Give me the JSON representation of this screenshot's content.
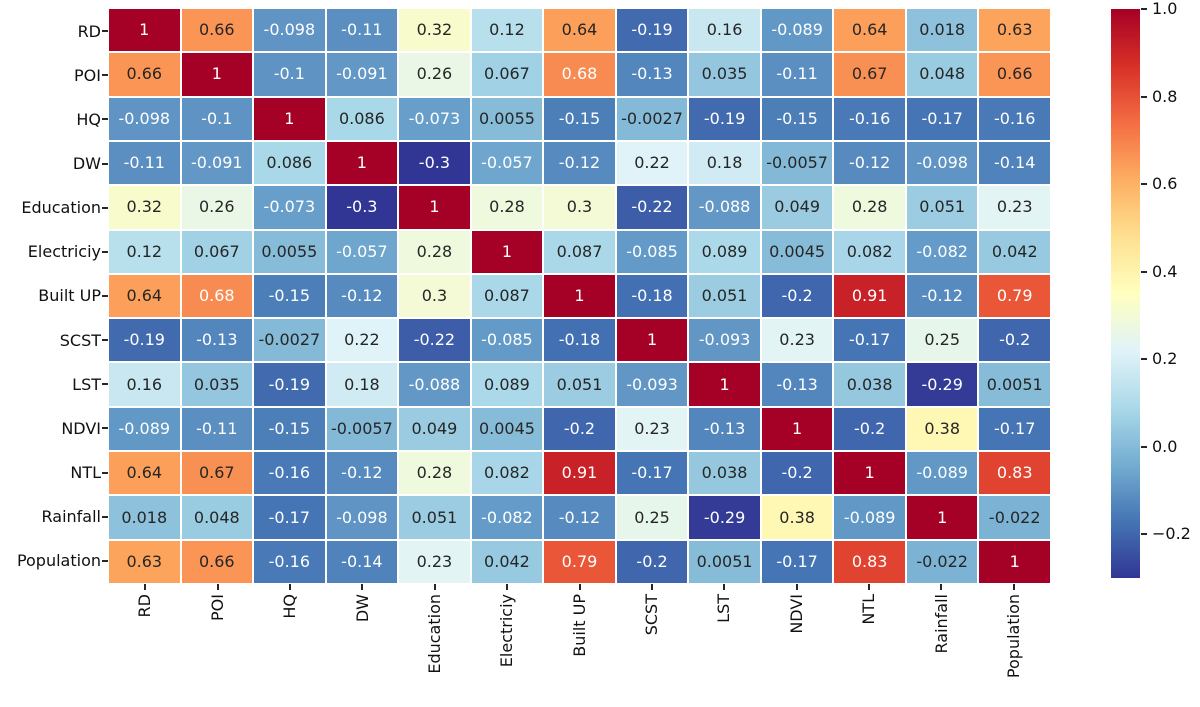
{
  "chart_data": {
    "type": "heatmap",
    "title": "",
    "xlabel": "",
    "ylabel": "",
    "categories": [
      "RD",
      "POI",
      "HQ",
      "DW",
      "Education",
      "Electriciy",
      "Built UP",
      "SCST",
      "LST",
      "NDVI",
      "NTL",
      "Rainfall",
      "Population"
    ],
    "matrix": [
      [
        "1",
        "0.66",
        "-0.098",
        "-0.11",
        "0.32",
        "0.12",
        "0.64",
        "-0.19",
        "0.16",
        "-0.089",
        "0.64",
        "0.018",
        "0.63"
      ],
      [
        "0.66",
        "1",
        "-0.1",
        "-0.091",
        "0.26",
        "0.067",
        "0.68",
        "-0.13",
        "0.035",
        "-0.11",
        "0.67",
        "0.048",
        "0.66"
      ],
      [
        "-0.098",
        "-0.1",
        "1",
        "0.086",
        "-0.073",
        "0.0055",
        "-0.15",
        "-0.0027",
        "-0.19",
        "-0.15",
        "-0.16",
        "-0.17",
        "-0.16"
      ],
      [
        "-0.11",
        "-0.091",
        "0.086",
        "1",
        "-0.3",
        "-0.057",
        "-0.12",
        "0.22",
        "0.18",
        "-0.0057",
        "-0.12",
        "-0.098",
        "-0.14"
      ],
      [
        "0.32",
        "0.26",
        "-0.073",
        "-0.3",
        "1",
        "0.28",
        "0.3",
        "-0.22",
        "-0.088",
        "0.049",
        "0.28",
        "0.051",
        "0.23"
      ],
      [
        "0.12",
        "0.067",
        "0.0055",
        "-0.057",
        "0.28",
        "1",
        "0.087",
        "-0.085",
        "0.089",
        "0.0045",
        "0.082",
        "-0.082",
        "0.042"
      ],
      [
        "0.64",
        "0.68",
        "-0.15",
        "-0.12",
        "0.3",
        "0.087",
        "1",
        "-0.18",
        "0.051",
        "-0.2",
        "0.91",
        "-0.12",
        "0.79"
      ],
      [
        "-0.19",
        "-0.13",
        "-0.0027",
        "0.22",
        "-0.22",
        "-0.085",
        "-0.18",
        "1",
        "-0.093",
        "0.23",
        "-0.17",
        "0.25",
        "-0.2"
      ],
      [
        "0.16",
        "0.035",
        "-0.19",
        "0.18",
        "-0.088",
        "0.089",
        "0.051",
        "-0.093",
        "1",
        "-0.13",
        "0.038",
        "-0.29",
        "0.0051"
      ],
      [
        "-0.089",
        "-0.11",
        "-0.15",
        "-0.0057",
        "0.049",
        "0.0045",
        "-0.2",
        "0.23",
        "-0.13",
        "1",
        "-0.2",
        "0.38",
        "-0.17"
      ],
      [
        "0.64",
        "0.67",
        "-0.16",
        "-0.12",
        "0.28",
        "0.082",
        "0.91",
        "-0.17",
        "0.038",
        "-0.2",
        "1",
        "-0.089",
        "0.83"
      ],
      [
        "0.018",
        "0.048",
        "-0.17",
        "-0.098",
        "0.051",
        "-0.082",
        "-0.12",
        "0.25",
        "-0.29",
        "0.38",
        "-0.089",
        "1",
        "-0.022"
      ],
      [
        "0.63",
        "0.66",
        "-0.16",
        "-0.14",
        "0.23",
        "0.042",
        "0.79",
        "-0.2",
        "0.0051",
        "-0.17",
        "0.83",
        "-0.022",
        "1"
      ]
    ],
    "vmin": -0.3,
    "vmax": 1.0,
    "grid_on": true,
    "grid_line_color": "#ffffff",
    "colormap": {
      "name": "RdYlBu_r",
      "anchors_low_to_high": [
        "#313695",
        "#4575b4",
        "#74add1",
        "#abd9e9",
        "#e0f3f8",
        "#ffffbf",
        "#fee090",
        "#fdae61",
        "#f46d43",
        "#d73027",
        "#a50026"
      ]
    },
    "annotation_colors": {
      "dark": "#262626",
      "light": "#ffffff"
    },
    "colorbar": {
      "position": "right",
      "ticks": [
        {
          "label": "1.0",
          "value": 1.0
        },
        {
          "label": "0.8",
          "value": 0.8
        },
        {
          "label": "0.6",
          "value": 0.6
        },
        {
          "label": "0.4",
          "value": 0.4
        },
        {
          "label": "0.2",
          "value": 0.2
        },
        {
          "label": "0.0",
          "value": 0.0
        },
        {
          "label": "−0.2",
          "value": -0.2
        }
      ]
    }
  }
}
